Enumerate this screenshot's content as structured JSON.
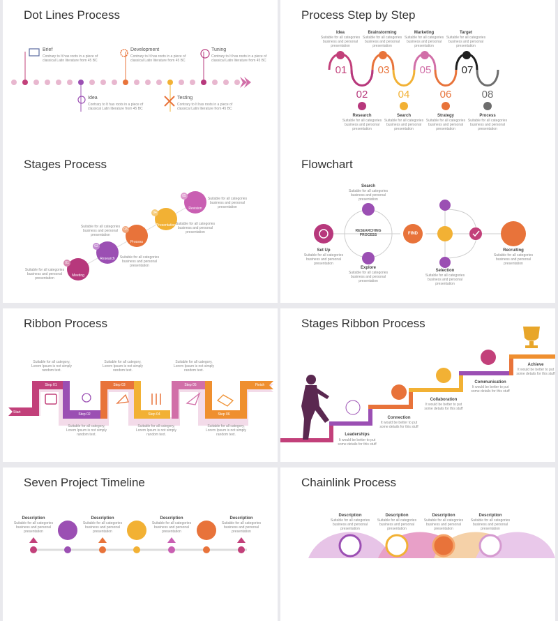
{
  "colors": {
    "pink": "#c2407a",
    "magenta": "#b7387c",
    "purple": "#9b4fb3",
    "orange": "#e8733a",
    "orange2": "#ef8f2f",
    "yellow": "#f2b134",
    "gold": "#e8a62a",
    "grey": "#6d6d6d",
    "black": "#1e1e1e",
    "lilac": "#d59ad0",
    "wine": "#5a2850"
  },
  "s1": {
    "title": "Dot Lines Process",
    "desc": "Contrary to It has roots in a piece of classical Latin literature from 45 BC",
    "steps": [
      {
        "name": "Brief"
      },
      {
        "name": "Development"
      },
      {
        "name": "Tuning"
      },
      {
        "name": "Idea"
      },
      {
        "name": "Testing"
      }
    ]
  },
  "s2": {
    "title": "Process Step by Step",
    "desc": "Suitable for all categories business and personal presentation",
    "top": [
      {
        "name": "Idea",
        "num": "01"
      },
      {
        "name": "Brainstorming",
        "num": "03"
      },
      {
        "name": "Marketing",
        "num": "05"
      },
      {
        "name": "Target",
        "num": "07"
      }
    ],
    "bottom": [
      {
        "name": "Research",
        "num": "02"
      },
      {
        "name": "Search",
        "num": "04"
      },
      {
        "name": "Strategy",
        "num": "06"
      },
      {
        "name": "Process",
        "num": "08"
      }
    ]
  },
  "s3": {
    "title": "Stages Process",
    "desc": "Suitable for all categories business and personal presentation",
    "stages": [
      {
        "num": "01",
        "name": "Meeting"
      },
      {
        "num": "02",
        "name": "Research"
      },
      {
        "num": "03",
        "name": "Process"
      },
      {
        "num": "04",
        "name": "Presentation"
      },
      {
        "num": "05",
        "name": "Revision"
      }
    ]
  },
  "s4": {
    "title": "Flowchart",
    "desc": "Suitable for all categories business and personal presentation",
    "center": "RESEARCHING PROCESS",
    "find": "FIND",
    "nodes": {
      "search": "Search",
      "setup": "Set Up",
      "explore": "Explore",
      "selection": "Selection",
      "recruiting": "Recruiting"
    }
  },
  "s5": {
    "title": "Ribbon Process",
    "desc": "Suitable for all category, Lorem Ipsum is not simply random text.",
    "start": "Start",
    "finish": "Finish",
    "steps": [
      "Step 01",
      "Step 02",
      "Step 03",
      "Step 04",
      "Step 05",
      "Step 06"
    ]
  },
  "s6": {
    "title": "Stages Ribbon Process",
    "desc": "It would be better to put some details for this stuff",
    "stages": [
      "Leaderships",
      "Connection",
      "Collaboration",
      "Communication",
      "Achieve"
    ]
  },
  "s7": {
    "title": "Seven Project Timeline",
    "desc_title": "Description",
    "desc": "Suitable for all categories business and personal presentation"
  },
  "s8": {
    "title": "Chainlink Process",
    "desc_title": "Description",
    "desc": "Suitable for all categories business and personal presentation"
  }
}
